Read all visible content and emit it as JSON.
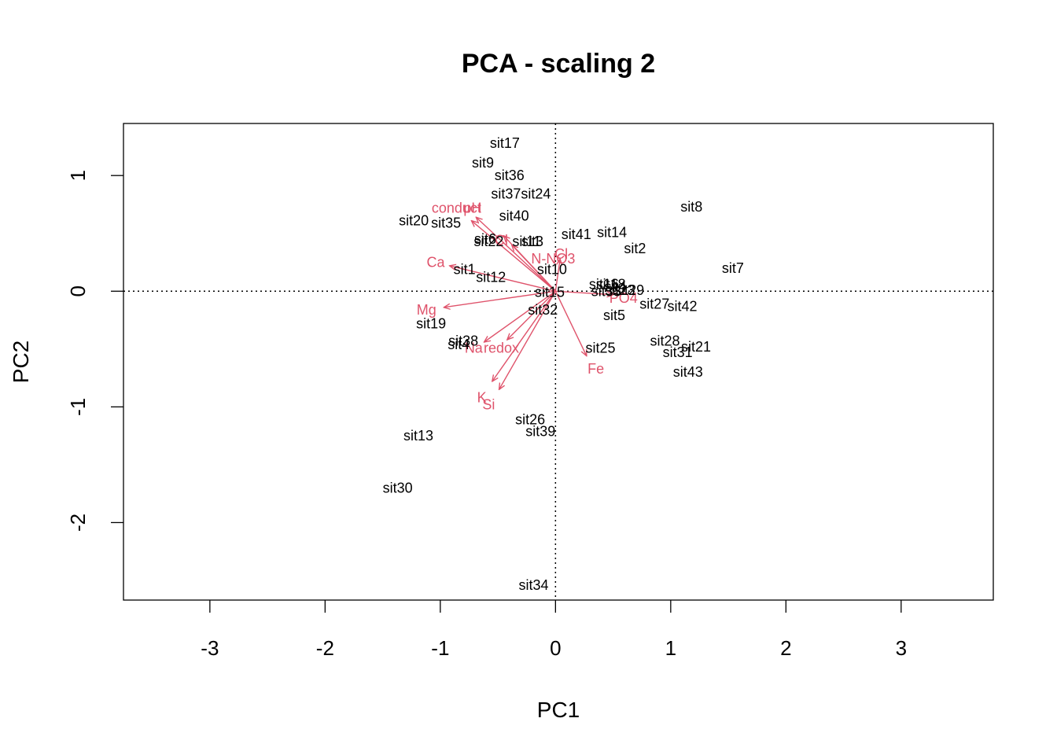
{
  "chart_data": {
    "type": "scatter",
    "subtype": "pca-biplot",
    "title": "PCA - scaling 2",
    "xlabel": "PC1",
    "ylabel": "PC2",
    "xlim": [
      -3.75,
      3.8
    ],
    "ylim": [
      -2.67,
      1.45
    ],
    "xticks": [
      -3,
      -2,
      -1,
      0,
      1,
      2,
      3
    ],
    "yticks": [
      -2,
      -1,
      0,
      1
    ],
    "zero_lines": true,
    "colors": {
      "sites": "#000000",
      "variables": "#DF536B"
    },
    "sites": [
      {
        "label": "sit17",
        "x": -0.44,
        "y": 1.28
      },
      {
        "label": "sit9",
        "x": -0.63,
        "y": 1.11
      },
      {
        "label": "sit36",
        "x": -0.4,
        "y": 1.0
      },
      {
        "label": "sit37",
        "x": -0.43,
        "y": 0.84
      },
      {
        "label": "sit24",
        "x": -0.17,
        "y": 0.84
      },
      {
        "label": "sit40",
        "x": -0.36,
        "y": 0.65
      },
      {
        "label": "sit20",
        "x": -1.23,
        "y": 0.61
      },
      {
        "label": "sit35",
        "x": -0.95,
        "y": 0.59
      },
      {
        "label": "sit6",
        "x": -0.61,
        "y": 0.45
      },
      {
        "label": "sit22",
        "x": -0.58,
        "y": 0.43
      },
      {
        "label": "sit11",
        "x": -0.25,
        "y": 0.43
      },
      {
        "label": "sit3",
        "x": -0.2,
        "y": 0.43
      },
      {
        "label": "sit41",
        "x": 0.18,
        "y": 0.49
      },
      {
        "label": "sit14",
        "x": 0.49,
        "y": 0.51
      },
      {
        "label": "sit2",
        "x": 0.69,
        "y": 0.37
      },
      {
        "label": "sit8",
        "x": 1.18,
        "y": 0.73
      },
      {
        "label": "sit7",
        "x": 1.54,
        "y": 0.2
      },
      {
        "label": "sit1",
        "x": -0.79,
        "y": 0.19
      },
      {
        "label": "sit12",
        "x": -0.56,
        "y": 0.12
      },
      {
        "label": "sit10",
        "x": -0.03,
        "y": 0.19
      },
      {
        "label": "sit15",
        "x": -0.05,
        "y": -0.01
      },
      {
        "label": "sit16",
        "x": 0.42,
        "y": 0.06
      },
      {
        "label": "sit18",
        "x": 0.48,
        "y": 0.06
      },
      {
        "label": "sit33",
        "x": 0.44,
        "y": 0.0
      },
      {
        "label": "sit4",
        "x": 0.52,
        "y": 0.04
      },
      {
        "label": "sit29",
        "x": 0.64,
        "y": 0.01
      },
      {
        "label": "sit23",
        "x": 0.56,
        "y": 0.01
      },
      {
        "label": "sit32",
        "x": -0.11,
        "y": -0.16
      },
      {
        "label": "sit27",
        "x": 0.86,
        "y": -0.11
      },
      {
        "label": "sit42",
        "x": 1.1,
        "y": -0.13
      },
      {
        "label": "sit5",
        "x": 0.51,
        "y": -0.21
      },
      {
        "label": "sit19",
        "x": -1.08,
        "y": -0.28
      },
      {
        "label": "sit38",
        "x": -0.8,
        "y": -0.43
      },
      {
        "label": "sit4",
        "x": -0.84,
        "y": -0.46
      },
      {
        "label": "sit25",
        "x": 0.39,
        "y": -0.49
      },
      {
        "label": "sit28",
        "x": 0.95,
        "y": -0.43
      },
      {
        "label": "sit21",
        "x": 1.22,
        "y": -0.48
      },
      {
        "label": "sit31",
        "x": 1.06,
        "y": -0.53
      },
      {
        "label": "sit43",
        "x": 1.15,
        "y": -0.7
      },
      {
        "label": "sit26",
        "x": -0.22,
        "y": -1.11
      },
      {
        "label": "sit39",
        "x": -0.13,
        "y": -1.21
      },
      {
        "label": "sit13",
        "x": -1.19,
        "y": -1.25
      },
      {
        "label": "sit30",
        "x": -1.37,
        "y": -1.7
      },
      {
        "label": "sit34",
        "x": -0.19,
        "y": -2.54
      }
    ],
    "variables": [
      {
        "label": "conduct",
        "x": -0.73,
        "y": 0.61,
        "lx": -0.86,
        "ly": 0.72
      },
      {
        "label": "pH",
        "x": -0.69,
        "y": 0.64,
        "lx": -0.72,
        "ly": 0.72
      },
      {
        "label": "Cl",
        "x": -0.45,
        "y": 0.48,
        "lx": -0.47,
        "ly": 0.44
      },
      {
        "label": "N-NO3",
        "x": -0.38,
        "y": 0.4,
        "lx": -0.02,
        "ly": 0.28
      },
      {
        "label": "Ca",
        "x": -0.92,
        "y": 0.22,
        "lx": -1.04,
        "ly": 0.25
      },
      {
        "label": "Mg",
        "x": -0.97,
        "y": -0.14,
        "lx": -1.12,
        "ly": -0.16
      },
      {
        "label": "Na",
        "x": -0.62,
        "y": -0.44,
        "lx": -0.71,
        "ly": -0.49
      },
      {
        "label": "redox",
        "x": -0.42,
        "y": -0.42,
        "lx": -0.47,
        "ly": -0.49
      },
      {
        "label": "K",
        "x": -0.55,
        "y": -0.78,
        "lx": -0.64,
        "ly": -0.92
      },
      {
        "label": "Si",
        "x": -0.49,
        "y": -0.85,
        "lx": -0.58,
        "ly": -0.98
      },
      {
        "label": "Fe",
        "x": 0.27,
        "y": -0.56,
        "lx": 0.35,
        "ly": -0.67
      },
      {
        "label": "PO4",
        "x": 0.5,
        "y": -0.03,
        "lx": 0.59,
        "ly": -0.06
      },
      {
        "label": "Cl",
        "x": 0.04,
        "y": 0.28,
        "lx": 0.05,
        "ly": 0.32
      }
    ]
  }
}
